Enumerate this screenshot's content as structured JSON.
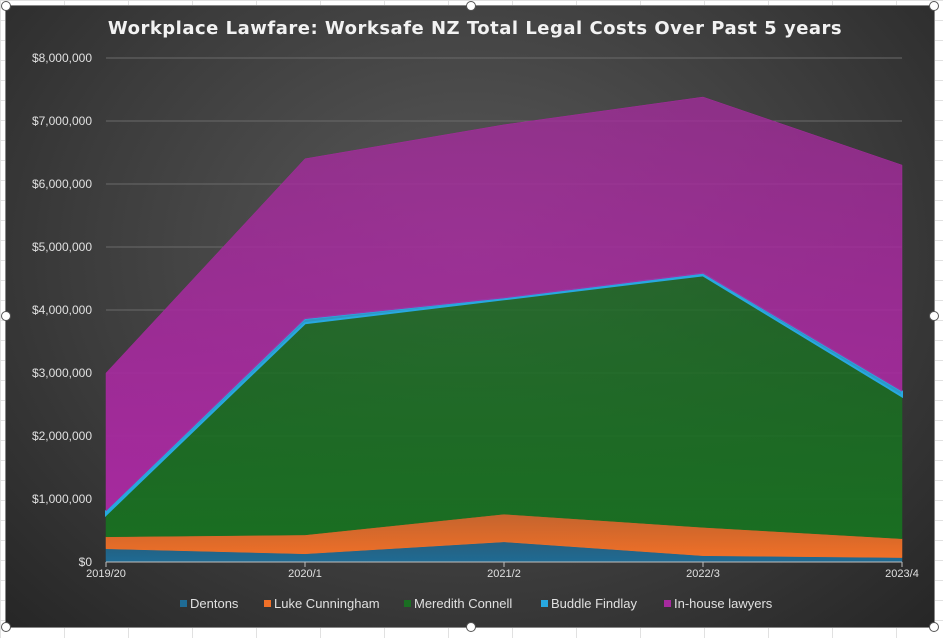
{
  "chart_data": {
    "type": "area",
    "stacked": true,
    "title": "Workplace Lawfare: Worksafe NZ Total Legal Costs Over Past 5 years",
    "xlabel": "",
    "ylabel": "",
    "categories": [
      "2019/20",
      "2020/1",
      "2021/2",
      "2022/3",
      "2023/4"
    ],
    "ylim": [
      0,
      8000000
    ],
    "yticks": [
      0,
      1000000,
      2000000,
      3000000,
      4000000,
      5000000,
      6000000,
      7000000,
      8000000
    ],
    "ytick_labels": [
      "$0",
      "$1,000,000",
      "$2,000,000",
      "$3,000,000",
      "$4,000,000",
      "$5,000,000",
      "$6,000,000",
      "$7,000,000",
      "$8,000,000"
    ],
    "grid": true,
    "legend": "bottom",
    "series": [
      {
        "name": "Dentons",
        "color": "#1f6b94",
        "values": [
          210000,
          130000,
          320000,
          100000,
          70000
        ]
      },
      {
        "name": "Luke Cunningham",
        "color": "#f07028",
        "values": [
          190000,
          300000,
          440000,
          450000,
          300000
        ]
      },
      {
        "name": "Meredith Connell",
        "color": "#1a6e22",
        "values": [
          350000,
          3360000,
          3410000,
          4000000,
          2260000
        ]
      },
      {
        "name": "Buddle Findlay",
        "color": "#28a8e0",
        "values": [
          60000,
          70000,
          20000,
          30000,
          80000
        ]
      },
      {
        "name": "In-house lawyers",
        "color": "#a62a9e",
        "values": [
          2190000,
          2540000,
          2750000,
          2800000,
          3590000
        ]
      }
    ]
  }
}
